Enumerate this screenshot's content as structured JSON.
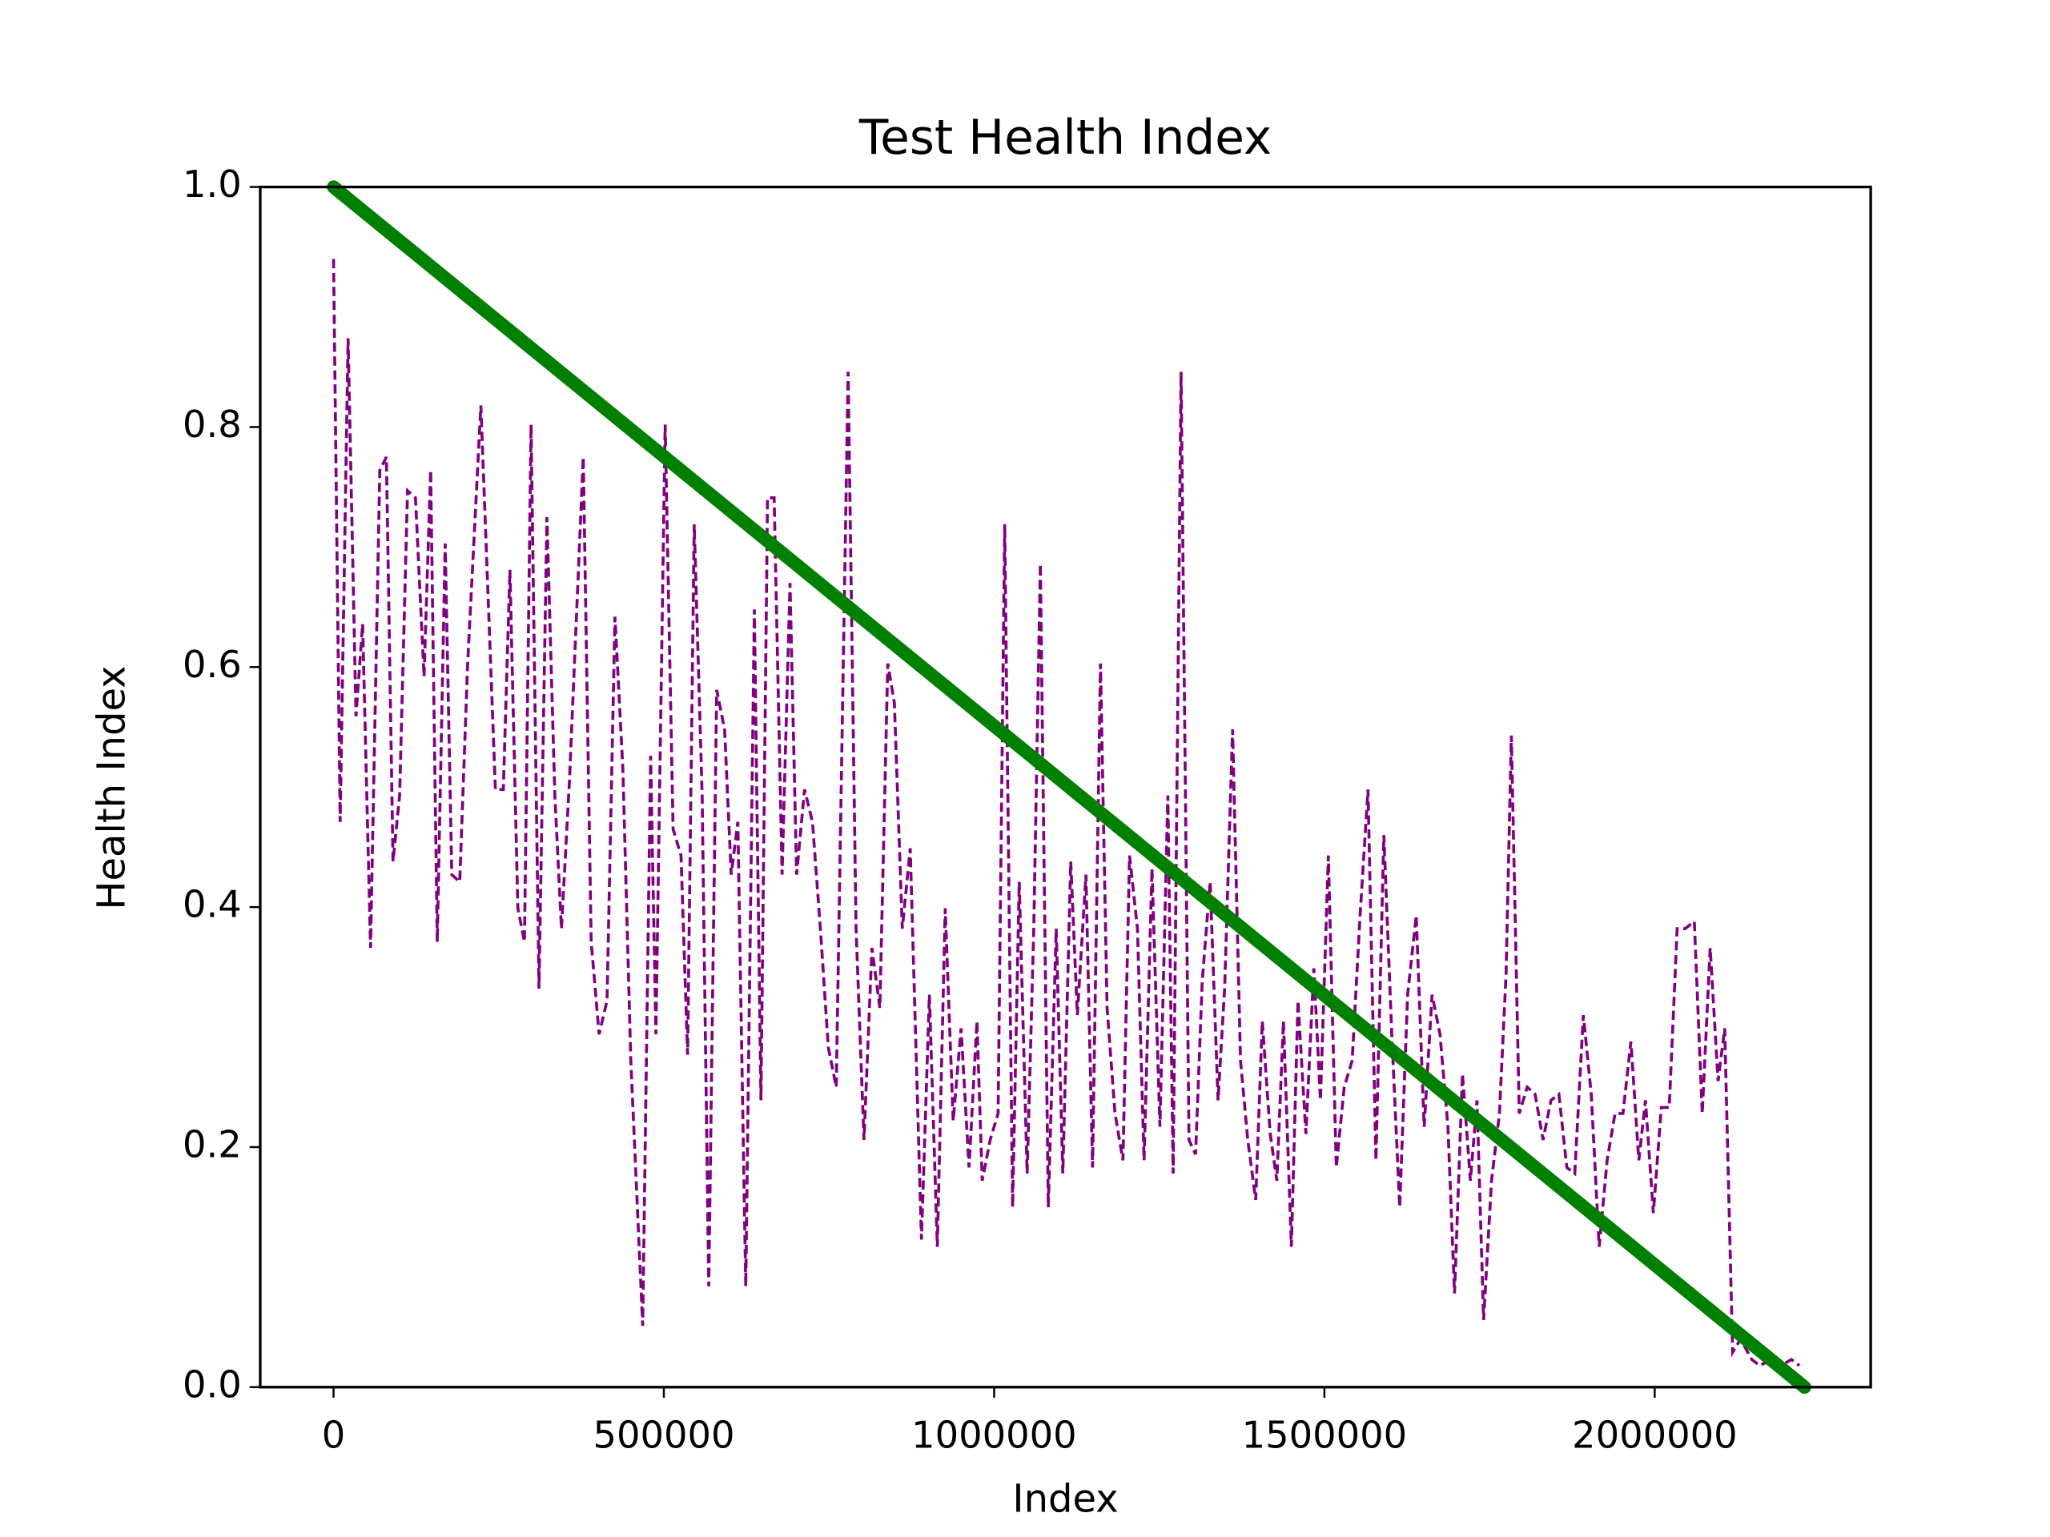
{
  "chart_data": {
    "type": "line",
    "title": "Test Health Index",
    "x_label": "Index",
    "y_label": "Health Index",
    "xlim": [
      -111000,
      2327000
    ],
    "ylim": [
      0,
      1
    ],
    "xticks": [
      0,
      500000,
      1000000,
      1500000,
      2000000
    ],
    "yticks": [
      {
        "value": 0,
        "label": "0.0"
      },
      0.2,
      0.4,
      0.6,
      0.8,
      {
        "value": 1,
        "label": "1.0"
      }
    ],
    "grid": false,
    "series": [
      {
        "color": "#800080",
        "linestyle": "dashed",
        "x": [
          0,
          10000,
          22000,
          34000,
          44000,
          56000,
          70000,
          80000,
          90000,
          100000,
          112000,
          124000,
          137000,
          147000,
          157000,
          169000,
          179000,
          191000,
          203000,
          223000,
          245000,
          257000,
          267000,
          279000,
          289000,
          299000,
          311000,
          323000,
          335000,
          345000,
          357000,
          378000,
          390000,
          402000,
          414000,
          426000,
          438000,
          450000,
          468000,
          480000,
          488000,
          502000,
          514000,
          526000,
          536000,
          546000,
          558000,
          568000,
          580000,
          592000,
          602000,
          612000,
          624000,
          637000,
          647000,
          657000,
          667000,
          679000,
          691000,
          701000,
          713000,
          725000,
          737000,
          749000,
          761000,
          779000,
          791000,
          803000,
          815000,
          827000,
          839000,
          849000,
          861000,
          873000,
          890000,
          902000,
          914000,
          926000,
          938000,
          950000,
          962000,
          974000,
          982000,
          994000,
          1006000,
          1016000,
          1028000,
          1038000,
          1050000,
          1060000,
          1070000,
          1082000,
          1094000,
          1104000,
          1116000,
          1126000,
          1139000,
          1149000,
          1161000,
          1171000,
          1183000,
          1195000,
          1205000,
          1217000,
          1227000,
          1239000,
          1251000,
          1263000,
          1271000,
          1283000,
          1295000,
          1305000,
          1315000,
          1327000,
          1339000,
          1349000,
          1361000,
          1373000,
          1384000,
          1396000,
          1406000,
          1418000,
          1428000,
          1438000,
          1450000,
          1460000,
          1472000,
          1484000,
          1494000,
          1506000,
          1518000,
          1530000,
          1542000,
          1554000,
          1566000,
          1578000,
          1590000,
          1602000,
          1614000,
          1626000,
          1639000,
          1651000,
          1663000,
          1675000,
          1687000,
          1697000,
          1709000,
          1721000,
          1731000,
          1741000,
          1753000,
          1765000,
          1775000,
          1783000,
          1795000,
          1807000,
          1819000,
          1831000,
          1843000,
          1855000,
          1867000,
          1879000,
          1892000,
          1904000,
          1916000,
          1928000,
          1940000,
          1952000,
          1964000,
          1976000,
          1986000,
          1998000,
          2010000,
          2022000,
          2034000,
          2046000,
          2060000,
          2072000,
          2084000,
          2096000,
          2106000,
          2118000,
          2130000,
          2147000,
          2159000,
          2177000,
          2191000,
          2207000,
          2219000
        ],
        "values": [
          0.94,
          0.471,
          0.874,
          0.559,
          0.636,
          0.366,
          0.764,
          0.775,
          0.438,
          0.493,
          0.747,
          0.741,
          0.592,
          0.764,
          0.371,
          0.703,
          0.427,
          0.421,
          0.603,
          0.818,
          0.498,
          0.498,
          0.681,
          0.399,
          0.371,
          0.802,
          0.332,
          0.725,
          0.493,
          0.382,
          0.504,
          0.775,
          0.371,
          0.294,
          0.322,
          0.642,
          0.515,
          0.272,
          0.051,
          0.526,
          0.294,
          0.802,
          0.465,
          0.443,
          0.277,
          0.719,
          0.493,
          0.084,
          0.581,
          0.548,
          0.427,
          0.471,
          0.084,
          0.648,
          0.239,
          0.741,
          0.741,
          0.427,
          0.67,
          0.427,
          0.498,
          0.471,
          0.382,
          0.283,
          0.25,
          0.846,
          0.382,
          0.206,
          0.366,
          0.316,
          0.603,
          0.57,
          0.382,
          0.449,
          0.123,
          0.327,
          0.117,
          0.399,
          0.222,
          0.299,
          0.183,
          0.305,
          0.172,
          0.206,
          0.228,
          0.719,
          0.15,
          0.421,
          0.178,
          0.382,
          0.686,
          0.15,
          0.382,
          0.178,
          0.438,
          0.31,
          0.427,
          0.183,
          0.603,
          0.316,
          0.228,
          0.189,
          0.443,
          0.382,
          0.189,
          0.432,
          0.217,
          0.493,
          0.178,
          0.846,
          0.206,
          0.194,
          0.338,
          0.421,
          0.239,
          0.333,
          0.548,
          0.272,
          0.206,
          0.156,
          0.305,
          0.211,
          0.172,
          0.305,
          0.117,
          0.322,
          0.211,
          0.349,
          0.239,
          0.443,
          0.183,
          0.25,
          0.272,
          0.393,
          0.498,
          0.189,
          0.46,
          0.294,
          0.15,
          0.327,
          0.393,
          0.217,
          0.327,
          0.294,
          0.217,
          0.078,
          0.261,
          0.172,
          0.239,
          0.056,
          0.172,
          0.228,
          0.344,
          0.543,
          0.228,
          0.25,
          0.244,
          0.206,
          0.239,
          0.244,
          0.183,
          0.178,
          0.31,
          0.244,
          0.117,
          0.189,
          0.228,
          0.228,
          0.288,
          0.189,
          0.239,
          0.145,
          0.233,
          0.233,
          0.382,
          0.382,
          0.388,
          0.228,
          0.366,
          0.255,
          0.299,
          0.029,
          0.04,
          0.023,
          0.018,
          0.023,
          0.018,
          0.023,
          0.018
        ]
      },
      {
        "color": "#008000",
        "linestyle": "solid",
        "x": [
          0,
          2227000
        ],
        "values": [
          1,
          0
        ]
      }
    ]
  }
}
